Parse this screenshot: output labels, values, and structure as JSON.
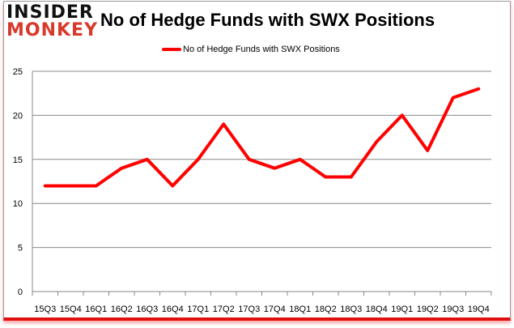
{
  "logo": {
    "line1": "INSIDER",
    "line2": "MONKEY"
  },
  "chart_data": {
    "type": "line",
    "title": "No of Hedge Funds with SWX Positions",
    "categories": [
      "15Q3",
      "15Q4",
      "16Q1",
      "16Q2",
      "16Q3",
      "16Q4",
      "17Q1",
      "17Q2",
      "17Q3",
      "17Q4",
      "18Q1",
      "18Q2",
      "18Q3",
      "18Q4",
      "19Q1",
      "19Q2",
      "19Q3",
      "19Q4"
    ],
    "series": [
      {
        "name": "No of Hedge Funds with SWX Positions",
        "values": [
          12,
          12,
          12,
          14,
          15,
          12,
          15,
          19,
          15,
          14,
          15,
          13,
          13,
          17,
          20,
          16,
          22,
          23
        ],
        "color": "#ff0000"
      }
    ],
    "ylim": [
      0,
      25
    ],
    "yticks": [
      0,
      5,
      10,
      15,
      20,
      25
    ],
    "grid": true,
    "legend": "top-center"
  }
}
